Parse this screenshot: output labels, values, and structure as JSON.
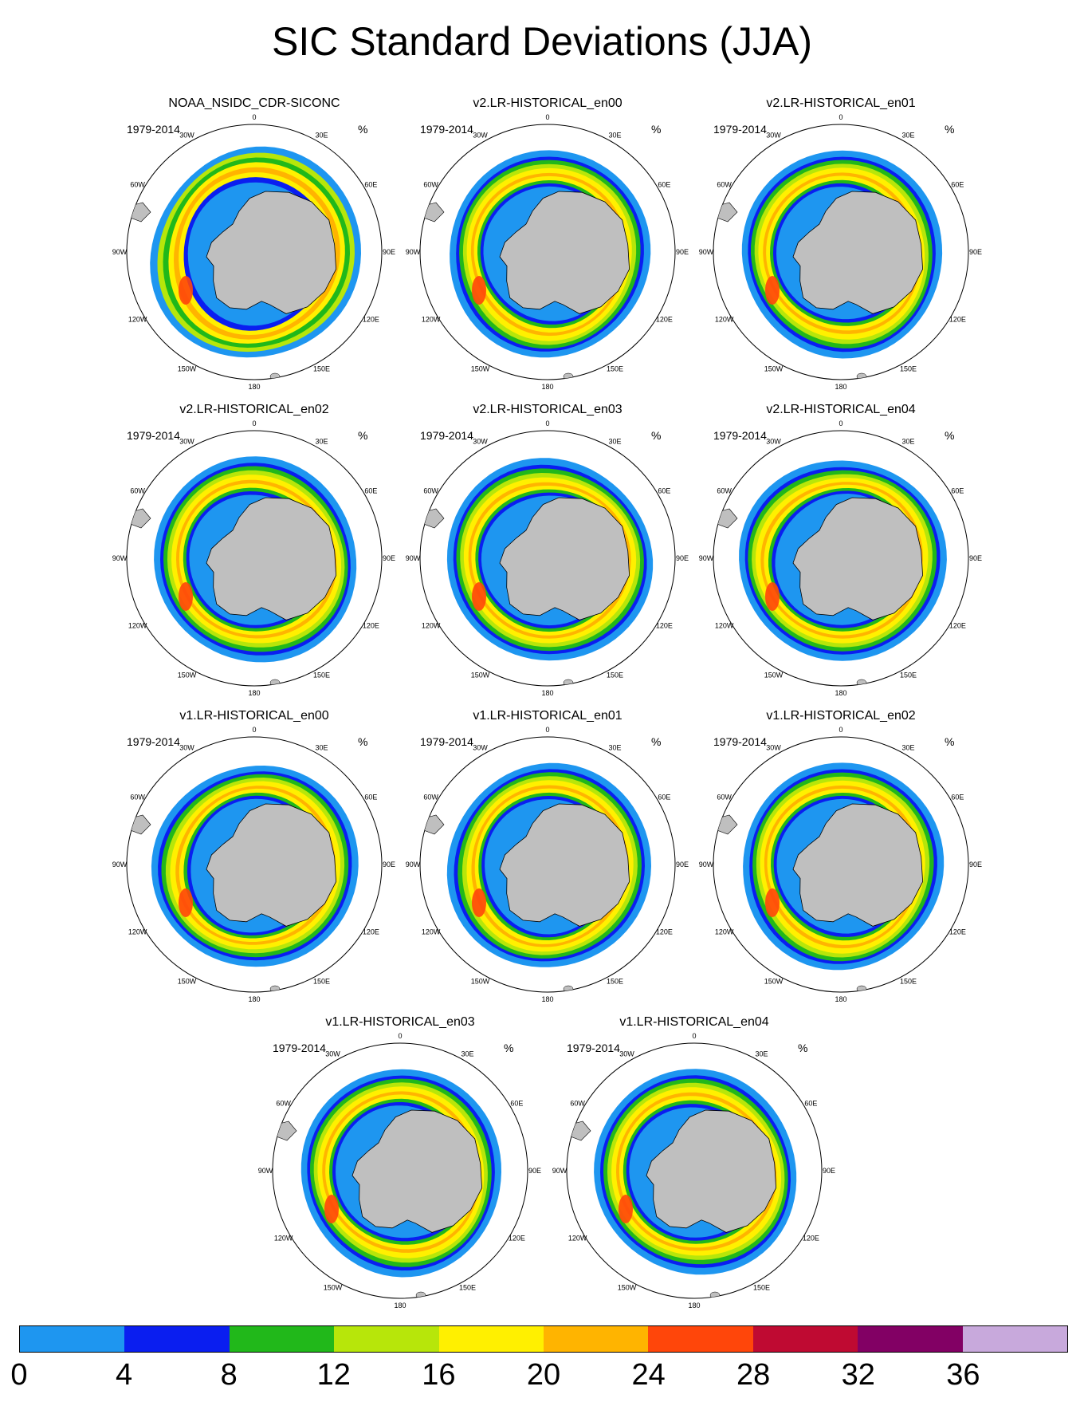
{
  "title": "SIC Standard Deviations (JJA)",
  "period": "1979-2014",
  "units": "%",
  "longitude_labels": [
    "0",
    "30E",
    "60E",
    "90E",
    "120E",
    "150E",
    "180",
    "150W",
    "120W",
    "90W",
    "60W",
    "30W"
  ],
  "panels": [
    {
      "name": "NOAA_NSIDC_CDR-SICONC",
      "kind": "obs"
    },
    {
      "name": "v2.LR-HISTORICAL_en00",
      "kind": "v2"
    },
    {
      "name": "v2.LR-HISTORICAL_en01",
      "kind": "v2"
    },
    {
      "name": "v2.LR-HISTORICAL_en02",
      "kind": "v2"
    },
    {
      "name": "v2.LR-HISTORICAL_en03",
      "kind": "v2"
    },
    {
      "name": "v2.LR-HISTORICAL_en04",
      "kind": "v2"
    },
    {
      "name": "v1.LR-HISTORICAL_en00",
      "kind": "v1"
    },
    {
      "name": "v1.LR-HISTORICAL_en01",
      "kind": "v1"
    },
    {
      "name": "v1.LR-HISTORICAL_en02",
      "kind": "v1"
    },
    {
      "name": "v1.LR-HISTORICAL_en03",
      "kind": "v1"
    },
    {
      "name": "v1.LR-HISTORICAL_en04",
      "kind": "v1"
    }
  ],
  "colorbar": {
    "labels": [
      "0",
      "4",
      "8",
      "12",
      "16",
      "20",
      "24",
      "28",
      "32",
      "36"
    ],
    "colors": [
      "#1e96f0",
      "#0a1ef0",
      "#21b81a",
      "#b7e60a",
      "#fff000",
      "#ffb400",
      "#ff460a",
      "#bf0a32",
      "#820064",
      "#c8a9dc"
    ]
  },
  "map_colors": {
    "land": "#bfbfbf",
    "outline": "#000000",
    "background": "#ffffff"
  }
}
